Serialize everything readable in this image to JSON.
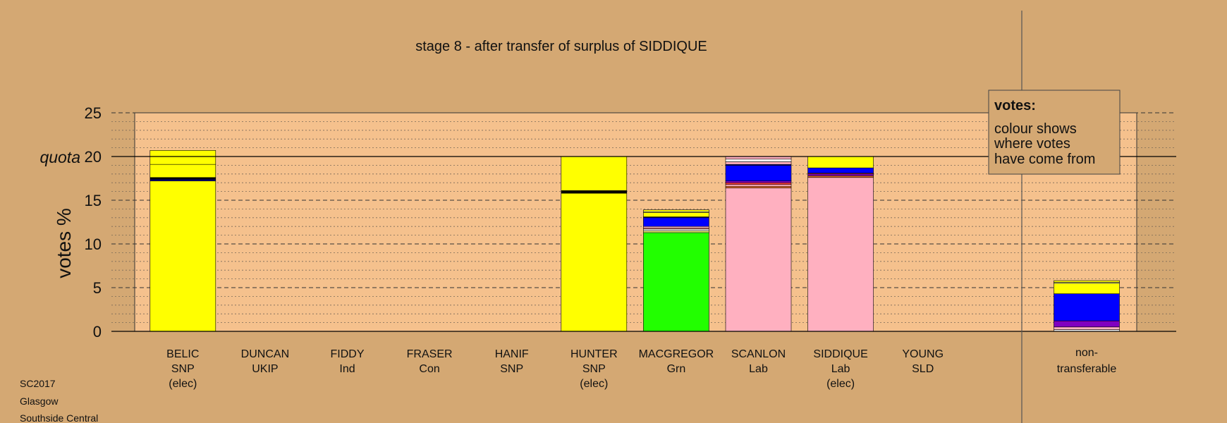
{
  "chart_data": {
    "type": "bar",
    "title": "stage 8 - after transfer of surplus of SIDDIQUE",
    "ylabel": "votes %",
    "ylim": [
      0,
      25
    ],
    "yticks": [
      0,
      5,
      10,
      15,
      20,
      25
    ],
    "quota": 20,
    "quota_label": "quota",
    "categories": [
      {
        "name": "BELIC",
        "party": "SNP",
        "note": "(elec)",
        "segments": [
          {
            "color": "#ffff00",
            "value": 17.2
          },
          {
            "color": "#000080",
            "value": 0.2
          },
          {
            "color": "#000000",
            "value": 0.2
          },
          {
            "color": "#ffff00",
            "value": 1.5
          },
          {
            "color": "#ffff00",
            "value": 1.6
          }
        ]
      },
      {
        "name": "DUNCAN",
        "party": "UKIP",
        "note": "",
        "segments": []
      },
      {
        "name": "FIDDY",
        "party": "Ind",
        "note": "",
        "segments": []
      },
      {
        "name": "FRASER",
        "party": "Con",
        "note": "",
        "segments": []
      },
      {
        "name": "HANIF",
        "party": "SNP",
        "note": "",
        "segments": []
      },
      {
        "name": "HUNTER",
        "party": "SNP",
        "note": "(elec)",
        "segments": [
          {
            "color": "#ffff00",
            "value": 15.8
          },
          {
            "color": "#000000",
            "value": 0.3
          },
          {
            "color": "#ffff00",
            "value": 3.9
          }
        ]
      },
      {
        "name": "MACGREGOR",
        "party": "Grn",
        "note": "",
        "segments": [
          {
            "color": "#22ff00",
            "value": 11.3
          },
          {
            "color": "#ffff80",
            "value": 0.2
          },
          {
            "color": "#ffffff",
            "value": 0.2
          },
          {
            "color": "#ff8080",
            "value": 0.1
          },
          {
            "color": "#ffb0c0",
            "value": 0.2
          },
          {
            "color": "#0000ff",
            "value": 1.0
          },
          {
            "color": "#000080",
            "value": 0.1
          },
          {
            "color": "#ffff00",
            "value": 0.5
          },
          {
            "color": "#ffffff",
            "value": 0.1
          },
          {
            "color": "#ffff00",
            "value": 0.2
          }
        ]
      },
      {
        "name": "SCANLON",
        "party": "Lab",
        "note": "",
        "segments": [
          {
            "color": "#ffb0c0",
            "value": 16.4
          },
          {
            "color": "#e87030",
            "value": 0.2
          },
          {
            "color": "#ffb0c0",
            "value": 0.2
          },
          {
            "color": "#ff4040",
            "value": 0.2
          },
          {
            "color": "#8000c0",
            "value": 0.2
          },
          {
            "color": "#0000ff",
            "value": 1.8
          },
          {
            "color": "#000080",
            "value": 0.1
          },
          {
            "color": "#ffb0c0",
            "value": 0.3
          },
          {
            "color": "#ffffff",
            "value": 0.3
          },
          {
            "color": "#ffb0c0",
            "value": 0.3
          }
        ]
      },
      {
        "name": "SIDDIQUE",
        "party": "Lab",
        "note": "(elec)",
        "segments": [
          {
            "color": "#ffb0c0",
            "value": 17.6
          },
          {
            "color": "#e87030",
            "value": 0.2
          },
          {
            "color": "#8000c0",
            "value": 0.2
          },
          {
            "color": "#ff4040",
            "value": 0.1
          },
          {
            "color": "#0000ff",
            "value": 0.6
          },
          {
            "color": "#ffff00",
            "value": 1.3
          }
        ]
      },
      {
        "name": "YOUNG",
        "party": "SLD",
        "note": "",
        "segments": []
      }
    ],
    "nontransferable": {
      "name": "non-",
      "party": "transferable",
      "segments": [
        {
          "color": "#ffffff",
          "value": 0.2
        },
        {
          "color": "#ffb0c0",
          "value": 0.3
        },
        {
          "color": "#8000c0",
          "value": 0.7
        },
        {
          "color": "#0000ff",
          "value": 3.1
        },
        {
          "color": "#ffff00",
          "value": 1.2
        },
        {
          "color": "#ffffff",
          "value": 0.1
        },
        {
          "color": "#ffff00",
          "value": 0.2
        }
      ]
    },
    "legend": {
      "title": "votes:",
      "lines": [
        "colour shows",
        "where votes",
        "have come from"
      ]
    },
    "colors": {
      "background": "#d4a873",
      "plot_area": "#f5c18d"
    }
  },
  "footer": {
    "line1": "SC2017",
    "line2": "Glasgow",
    "line3": "Southside Central"
  }
}
